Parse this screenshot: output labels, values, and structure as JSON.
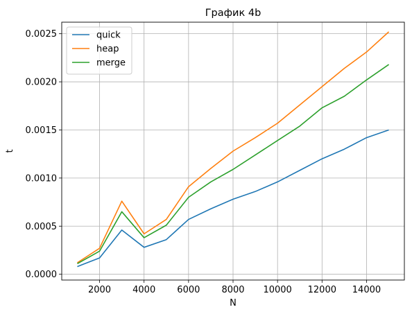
{
  "chart_data": {
    "type": "line",
    "title": "График 4b",
    "xlabel": "N",
    "ylabel": "t",
    "x": [
      1000,
      2000,
      3000,
      4000,
      5000,
      6000,
      7000,
      8000,
      9000,
      10000,
      11000,
      12000,
      13000,
      14000,
      15000
    ],
    "xticks": [
      2000,
      4000,
      6000,
      8000,
      10000,
      12000,
      14000
    ],
    "xtick_labels": [
      "2000",
      "4000",
      "6000",
      "8000",
      "10000",
      "12000",
      "14000"
    ],
    "yticks": [
      0.0,
      0.0005,
      0.001,
      0.0015,
      0.002,
      0.0025
    ],
    "ytick_labels": [
      "0.0000",
      "0.0005",
      "0.0010",
      "0.0015",
      "0.0020",
      "0.0025"
    ],
    "xlim": [
      300,
      15700
    ],
    "ylim": [
      -6e-05,
      0.00262
    ],
    "grid": true,
    "legend_position": "upper-left",
    "series": [
      {
        "name": "quick",
        "color": "#1f77b4",
        "values": [
          8e-05,
          0.00017,
          0.00046,
          0.00028,
          0.00036,
          0.00057,
          0.00068,
          0.00078,
          0.00086,
          0.00096,
          0.00108,
          0.0012,
          0.0013,
          0.00142,
          0.0015
        ]
      },
      {
        "name": "heap",
        "color": "#ff7f0e",
        "values": [
          0.00012,
          0.00027,
          0.00076,
          0.00042,
          0.00057,
          0.00091,
          0.0011,
          0.00128,
          0.00142,
          0.00157,
          0.00176,
          0.00195,
          0.00214,
          0.00231,
          0.00252
        ]
      },
      {
        "name": "merge",
        "color": "#2ca02c",
        "values": [
          0.00011,
          0.00024,
          0.00065,
          0.00038,
          0.00051,
          0.0008,
          0.00096,
          0.00109,
          0.00124,
          0.00139,
          0.00154,
          0.00173,
          0.00185,
          0.00202,
          0.00218
        ]
      }
    ]
  }
}
